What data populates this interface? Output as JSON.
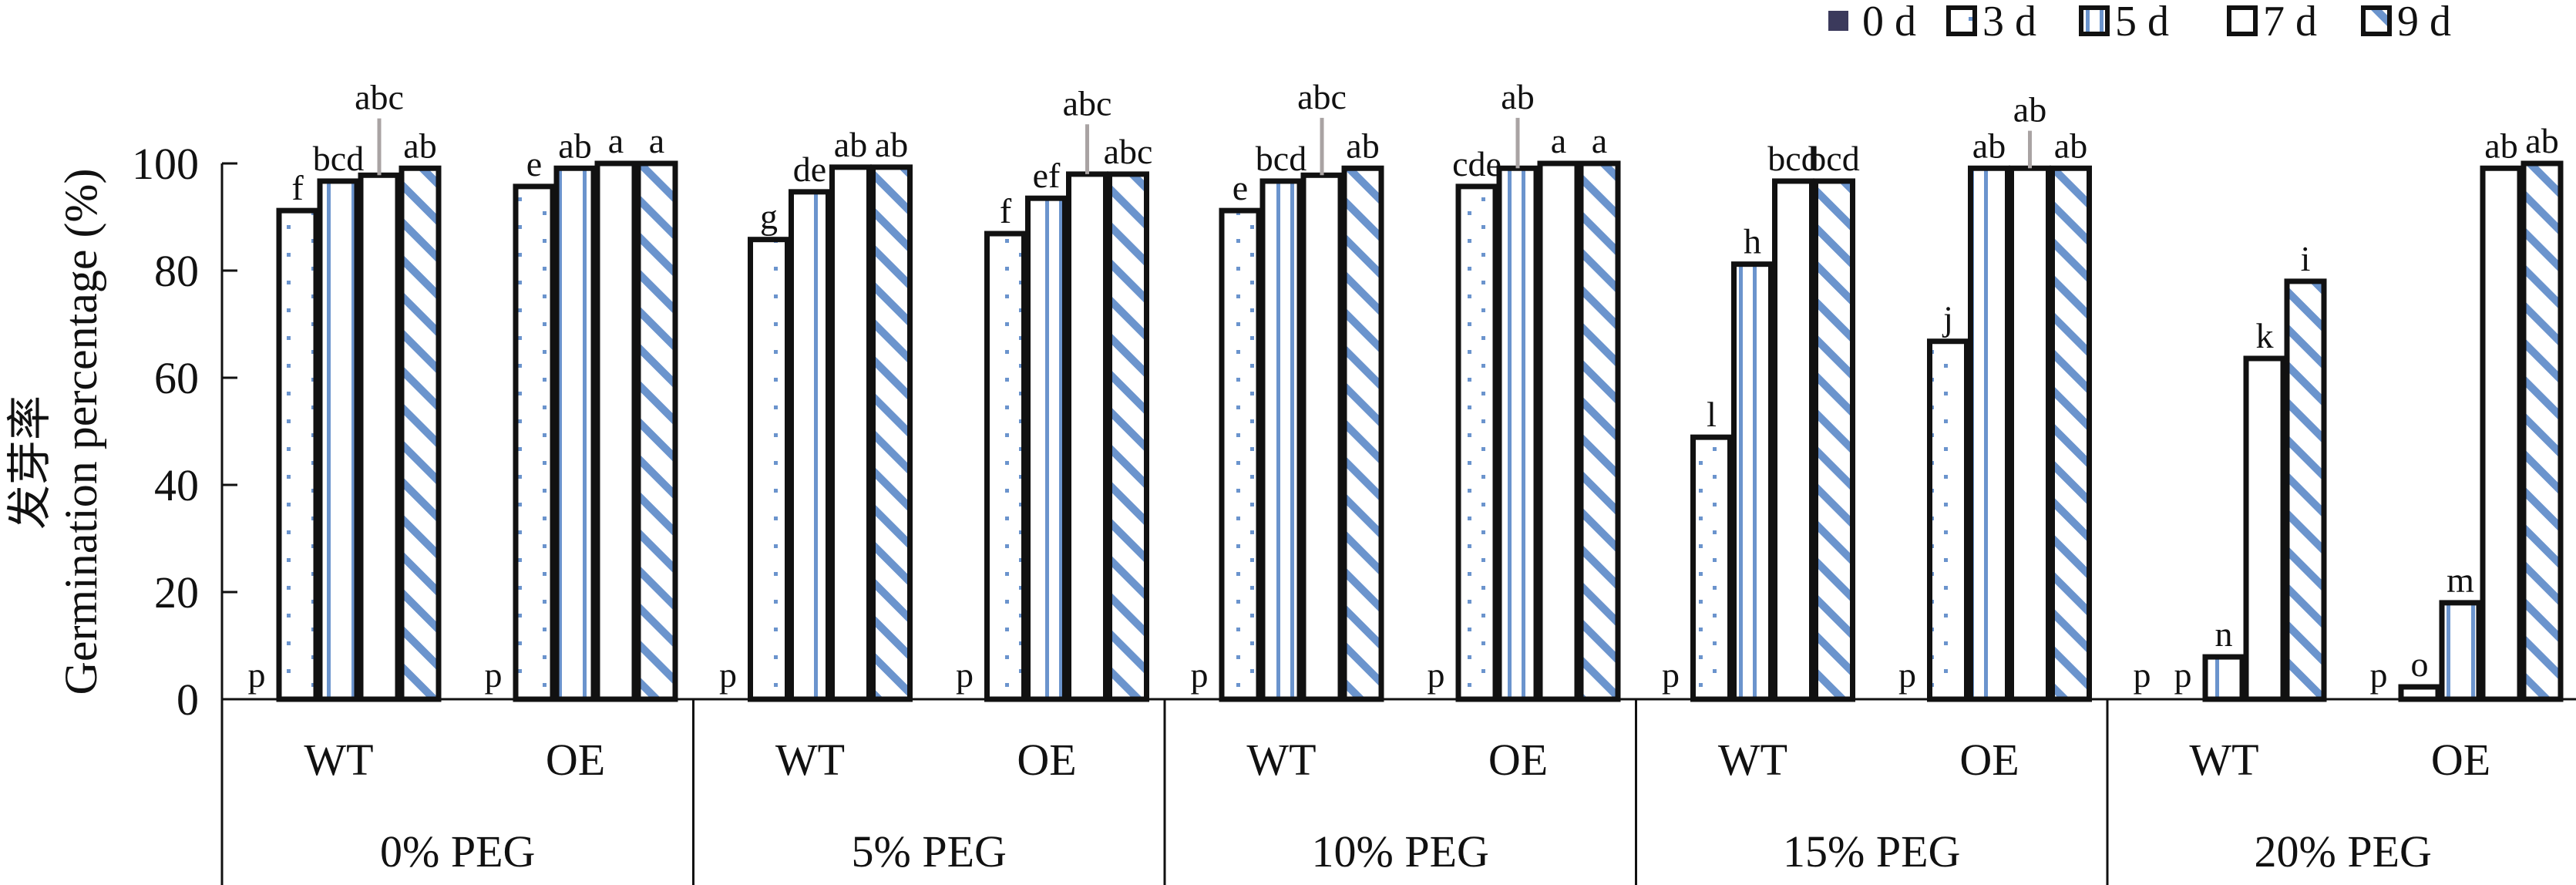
{
  "chart_data": {
    "type": "bar",
    "title": "",
    "ylabel": "Germination percentage (%)",
    "ylabel_cn": "发芽率",
    "xlabel": "",
    "ylim": [
      0,
      100
    ],
    "yticks": [
      0,
      20,
      40,
      60,
      80,
      100
    ],
    "grid": false,
    "legend_position": "top-right",
    "groups": [
      "0% PEG",
      "5% PEG",
      "10% PEG",
      "15% PEG",
      "20% PEG"
    ],
    "categories": [
      "WT",
      "OE"
    ],
    "series": [
      {
        "name": "0 d",
        "pattern": "solid",
        "values": [
          [
            0,
            0
          ],
          [
            0,
            0
          ],
          [
            0,
            0
          ],
          [
            0,
            0
          ],
          [
            0,
            0
          ]
        ],
        "labels": [
          [
            "p",
            "p"
          ],
          [
            "p",
            "p"
          ],
          [
            "p",
            "p"
          ],
          [
            "p",
            "p"
          ],
          [
            "p",
            "p"
          ]
        ]
      },
      {
        "name": "3 d",
        "pattern": "dots",
        "values": [
          [
            91.2,
            95.7
          ],
          [
            85.8,
            86.9
          ],
          [
            91.2,
            95.7
          ],
          [
            48.9,
            66.8
          ],
          [
            0,
            2.3
          ]
        ],
        "labels": [
          [
            "f",
            "e"
          ],
          [
            "g",
            "f"
          ],
          [
            "e",
            "cde"
          ],
          [
            "l",
            "j"
          ],
          [
            "p",
            "o"
          ]
        ]
      },
      {
        "name": "5 d",
        "pattern": "vertical-lines",
        "values": [
          [
            96.7,
            99.1
          ],
          [
            94.7,
            93.5
          ],
          [
            96.7,
            99.1
          ],
          [
            81.2,
            99.1
          ],
          [
            7.9,
            18.0
          ]
        ],
        "labels": [
          [
            "bcd",
            "ab"
          ],
          [
            "de",
            "ef"
          ],
          [
            "bcd",
            "ab"
          ],
          [
            "h",
            "ab"
          ],
          [
            "n",
            "m"
          ]
        ],
        "errors": [
          [
            null,
            null
          ],
          [
            null,
            null
          ],
          [
            null,
            9.4
          ],
          [
            null,
            null
          ],
          [
            null,
            null
          ]
        ]
      },
      {
        "name": "7 d",
        "pattern": "empty",
        "values": [
          [
            97.8,
            100
          ],
          [
            99.3,
            98.0
          ],
          [
            97.8,
            100
          ],
          [
            96.7,
            99.1
          ],
          [
            63.6,
            99.1
          ]
        ],
        "labels": [
          [
            "abc",
            "a"
          ],
          [
            "ab",
            "abc"
          ],
          [
            "abc",
            "a"
          ],
          [
            "bcd",
            "ab"
          ],
          [
            "k",
            "ab"
          ]
        ],
        "errors": [
          [
            10.6,
            null
          ],
          [
            null,
            9.3
          ],
          [
            10.7,
            null
          ],
          [
            null,
            7.0
          ],
          [
            null,
            null
          ]
        ]
      },
      {
        "name": "9 d",
        "pattern": "diagonal-stripes",
        "values": [
          [
            99.1,
            100
          ],
          [
            99.3,
            98.0
          ],
          [
            99.1,
            100
          ],
          [
            96.7,
            99.1
          ],
          [
            78.0,
            100
          ]
        ],
        "labels": [
          [
            "ab",
            "a"
          ],
          [
            "ab",
            "abc"
          ],
          [
            "ab",
            "a"
          ],
          [
            "bcd",
            "ab"
          ],
          [
            "i",
            "ab"
          ]
        ]
      }
    ],
    "colors": {
      "solid": "#3b3a5c",
      "pattern_blue": "#6b94cd",
      "outline": "#111111",
      "error_bar": "#a9a3a3"
    }
  }
}
